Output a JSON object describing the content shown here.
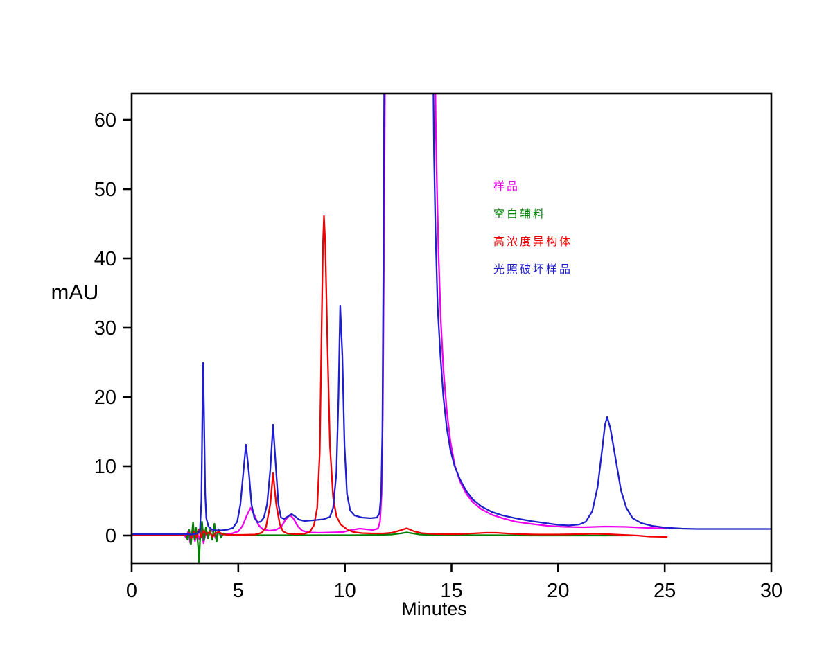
{
  "chart_data": {
    "type": "line",
    "title": "",
    "xlabel": "Minutes",
    "ylabel": "mAU",
    "xlim": [
      0,
      30
    ],
    "ylim": [
      -4,
      63.8
    ],
    "x_ticks": [
      0,
      5,
      10,
      15,
      20,
      25,
      30
    ],
    "y_ticks": [
      0,
      10,
      20,
      30,
      40,
      50,
      60
    ],
    "grid": false,
    "legend_position": "inside-upper-right",
    "axis_color": "#000000",
    "note_offscale_peak": "main peak 11.9-14.2 min clipped at plot top",
    "series": [
      {
        "name": "样品",
        "key": "sample",
        "color": "#EE00EE",
        "points": [
          [
            0,
            0.15
          ],
          [
            0.5,
            0.15
          ],
          [
            1,
            0.15
          ],
          [
            1.5,
            0.15
          ],
          [
            2,
            0.15
          ],
          [
            2.45,
            0.15
          ],
          [
            2.55,
            -0.3
          ],
          [
            2.65,
            0.6
          ],
          [
            2.75,
            -1.1
          ],
          [
            2.87,
            0.7
          ],
          [
            2.97,
            -0.8
          ],
          [
            3.07,
            0.5
          ],
          [
            3.17,
            -0.6
          ],
          [
            3.27,
            0.9
          ],
          [
            3.37,
            -1.1
          ],
          [
            3.48,
            0.5
          ],
          [
            3.58,
            -0.4
          ],
          [
            3.7,
            0.8
          ],
          [
            3.83,
            0.5
          ],
          [
            3.94,
            -0.4
          ],
          [
            4.05,
            0.5
          ],
          [
            4.2,
            0.1
          ],
          [
            4.4,
            0.2
          ],
          [
            4.7,
            0.3
          ],
          [
            5.0,
            0.6
          ],
          [
            5.2,
            1.4
          ],
          [
            5.4,
            2.9
          ],
          [
            5.58,
            4.0
          ],
          [
            5.75,
            3.0
          ],
          [
            5.95,
            1.5
          ],
          [
            6.15,
            0.9
          ],
          [
            6.45,
            0.7
          ],
          [
            6.75,
            0.8
          ],
          [
            7.0,
            1.2
          ],
          [
            7.2,
            2.2
          ],
          [
            7.42,
            3.0
          ],
          [
            7.6,
            2.4
          ],
          [
            7.8,
            1.3
          ],
          [
            8.0,
            0.7
          ],
          [
            8.3,
            0.45
          ],
          [
            8.8,
            0.4
          ],
          [
            9.4,
            0.45
          ],
          [
            9.9,
            0.5
          ],
          [
            10.3,
            0.8
          ],
          [
            10.7,
            1.0
          ],
          [
            11.0,
            0.9
          ],
          [
            11.3,
            0.8
          ],
          [
            11.55,
            1.0
          ],
          [
            11.65,
            2
          ],
          [
            11.72,
            6
          ],
          [
            11.78,
            18
          ],
          [
            11.84,
            45
          ],
          [
            11.9,
            75
          ],
          [
            14.2,
            75
          ],
          [
            14.26,
            60
          ],
          [
            14.32,
            50
          ],
          [
            14.4,
            40
          ],
          [
            14.5,
            31
          ],
          [
            14.62,
            24
          ],
          [
            14.78,
            18
          ],
          [
            14.95,
            13.5
          ],
          [
            15.15,
            10.2
          ],
          [
            15.4,
            7.8
          ],
          [
            15.7,
            6.0
          ],
          [
            16.0,
            4.8
          ],
          [
            16.4,
            3.8
          ],
          [
            16.9,
            3.0
          ],
          [
            17.4,
            2.5
          ],
          [
            18.0,
            2.0
          ],
          [
            18.7,
            1.7
          ],
          [
            19.5,
            1.4
          ],
          [
            20.3,
            1.25
          ],
          [
            21.2,
            1.2
          ],
          [
            22.2,
            1.3
          ],
          [
            23.2,
            1.25
          ],
          [
            24.2,
            1.1
          ],
          [
            25.1,
            1.0
          ]
        ]
      },
      {
        "name": "空白辅料",
        "key": "blank-excipient",
        "color": "#008000",
        "points": [
          [
            0,
            0.05
          ],
          [
            0.6,
            0.05
          ],
          [
            1.2,
            0.05
          ],
          [
            1.8,
            0.05
          ],
          [
            2.4,
            0.05
          ],
          [
            2.55,
            0.1
          ],
          [
            2.62,
            -0.6
          ],
          [
            2.7,
            0.8
          ],
          [
            2.78,
            -1.3
          ],
          [
            2.88,
            1.9
          ],
          [
            2.95,
            -0.6
          ],
          [
            3.02,
            1.1
          ],
          [
            3.08,
            -0.4
          ],
          [
            3.13,
            -2.0
          ],
          [
            3.16,
            -3.9
          ],
          [
            3.2,
            -1.0
          ],
          [
            3.24,
            0.5
          ],
          [
            3.3,
            2.0
          ],
          [
            3.38,
            -0.7
          ],
          [
            3.48,
            1.2
          ],
          [
            3.58,
            -0.4
          ],
          [
            3.68,
            0.8
          ],
          [
            3.78,
            -0.6
          ],
          [
            3.88,
            1.7
          ],
          [
            3.98,
            -0.9
          ],
          [
            4.08,
            0.9
          ],
          [
            4.18,
            -0.3
          ],
          [
            4.3,
            0.3
          ],
          [
            4.5,
            0.05
          ],
          [
            5.5,
            0.05
          ],
          [
            6.5,
            0.05
          ],
          [
            7.5,
            0.05
          ],
          [
            8.5,
            0.05
          ],
          [
            9.5,
            0.05
          ],
          [
            10.5,
            0.05
          ],
          [
            11.5,
            0.08
          ],
          [
            12.2,
            0.15
          ],
          [
            12.6,
            0.3
          ],
          [
            12.9,
            0.45
          ],
          [
            13.2,
            0.3
          ],
          [
            13.5,
            0.15
          ],
          [
            14.0,
            0.08
          ],
          [
            15,
            0.05
          ],
          [
            16,
            0.05
          ],
          [
            17,
            0.05
          ],
          [
            18,
            0.02
          ],
          [
            19,
            0.0
          ],
          [
            20,
            0.0
          ],
          [
            21,
            0.0
          ],
          [
            22,
            0.0
          ],
          [
            23.5,
            0.0
          ]
        ]
      },
      {
        "name": "高浓度异构体",
        "key": "high-conc-isomer",
        "color": "#EE0000",
        "points": [
          [
            0,
            0.1
          ],
          [
            0.6,
            0.1
          ],
          [
            1.2,
            0.1
          ],
          [
            1.8,
            0.1
          ],
          [
            2.4,
            0.1
          ],
          [
            2.6,
            0.1
          ],
          [
            2.7,
            0.4
          ],
          [
            2.8,
            -0.4
          ],
          [
            2.92,
            0.6
          ],
          [
            3.05,
            -0.3
          ],
          [
            3.15,
            0.9
          ],
          [
            3.25,
            -0.3
          ],
          [
            3.38,
            0.7
          ],
          [
            3.5,
            0.2
          ],
          [
            3.65,
            0.5
          ],
          [
            3.8,
            -0.2
          ],
          [
            3.95,
            0.4
          ],
          [
            4.1,
            0.5
          ],
          [
            4.3,
            0.15
          ],
          [
            4.6,
            0.1
          ],
          [
            5.2,
            0.1
          ],
          [
            5.8,
            0.15
          ],
          [
            6.1,
            0.4
          ],
          [
            6.3,
            1.2
          ],
          [
            6.5,
            4.5
          ],
          [
            6.63,
            9.0
          ],
          [
            6.78,
            4.5
          ],
          [
            6.95,
            1.6
          ],
          [
            7.1,
            0.6
          ],
          [
            7.3,
            0.3
          ],
          [
            7.7,
            0.2
          ],
          [
            8.1,
            0.25
          ],
          [
            8.35,
            0.5
          ],
          [
            8.55,
            1.5
          ],
          [
            8.7,
            4.0
          ],
          [
            8.82,
            12
          ],
          [
            8.9,
            28
          ],
          [
            8.97,
            42
          ],
          [
            9.02,
            46.1
          ],
          [
            9.08,
            42
          ],
          [
            9.18,
            28
          ],
          [
            9.3,
            13
          ],
          [
            9.45,
            5.5
          ],
          [
            9.6,
            2.8
          ],
          [
            9.8,
            1.6
          ],
          [
            10.1,
            0.9
          ],
          [
            10.4,
            0.5
          ],
          [
            10.8,
            0.35
          ],
          [
            11.3,
            0.3
          ],
          [
            11.8,
            0.3
          ],
          [
            12.2,
            0.4
          ],
          [
            12.55,
            0.7
          ],
          [
            12.9,
            1.05
          ],
          [
            13.25,
            0.6
          ],
          [
            13.6,
            0.35
          ],
          [
            14.0,
            0.25
          ],
          [
            14.6,
            0.2
          ],
          [
            15.3,
            0.2
          ],
          [
            16.0,
            0.3
          ],
          [
            16.6,
            0.4
          ],
          [
            17.1,
            0.4
          ],
          [
            17.6,
            0.3
          ],
          [
            18.2,
            0.2
          ],
          [
            19.0,
            0.15
          ],
          [
            20.0,
            0.15
          ],
          [
            21.0,
            0.2
          ],
          [
            21.7,
            0.25
          ],
          [
            22.3,
            0.2
          ],
          [
            23.0,
            0.1
          ],
          [
            23.7,
            0.0
          ],
          [
            24.3,
            -0.15
          ],
          [
            25.1,
            -0.2
          ]
        ]
      },
      {
        "name": "光照破坏样品",
        "key": "photodegraded-sample",
        "color": "#1E1ECC",
        "points": [
          [
            0,
            0.2
          ],
          [
            0.7,
            0.2
          ],
          [
            1.4,
            0.2
          ],
          [
            2.1,
            0.2
          ],
          [
            2.6,
            0.2
          ],
          [
            2.8,
            0.15
          ],
          [
            3.0,
            0.25
          ],
          [
            3.1,
            0.3
          ],
          [
            3.2,
            0.8
          ],
          [
            3.27,
            5
          ],
          [
            3.32,
            18
          ],
          [
            3.35,
            24.9
          ],
          [
            3.39,
            18
          ],
          [
            3.45,
            6
          ],
          [
            3.5,
            2.5
          ],
          [
            3.6,
            1.3
          ],
          [
            3.75,
            0.9
          ],
          [
            3.95,
            0.75
          ],
          [
            4.2,
            0.75
          ],
          [
            4.5,
            0.85
          ],
          [
            4.75,
            1.1
          ],
          [
            4.95,
            2.0
          ],
          [
            5.1,
            4.5
          ],
          [
            5.25,
            9.5
          ],
          [
            5.36,
            13.1
          ],
          [
            5.5,
            9.0
          ],
          [
            5.62,
            4.5
          ],
          [
            5.75,
            2.6
          ],
          [
            5.9,
            1.9
          ],
          [
            6.05,
            2.0
          ],
          [
            6.2,
            2.6
          ],
          [
            6.35,
            4.5
          ],
          [
            6.5,
            9.5
          ],
          [
            6.63,
            16.0
          ],
          [
            6.76,
            10
          ],
          [
            6.88,
            4.5
          ],
          [
            7.0,
            2.6
          ],
          [
            7.15,
            2.4
          ],
          [
            7.35,
            2.8
          ],
          [
            7.5,
            3.1
          ],
          [
            7.65,
            2.8
          ],
          [
            7.85,
            2.3
          ],
          [
            8.1,
            2.1
          ],
          [
            8.5,
            2.2
          ],
          [
            9.0,
            2.35
          ],
          [
            9.3,
            2.7
          ],
          [
            9.45,
            4.0
          ],
          [
            9.6,
            9.0
          ],
          [
            9.7,
            20
          ],
          [
            9.78,
            33.2
          ],
          [
            9.88,
            26
          ],
          [
            9.98,
            13
          ],
          [
            10.1,
            6.0
          ],
          [
            10.25,
            3.6
          ],
          [
            10.45,
            2.9
          ],
          [
            10.8,
            2.6
          ],
          [
            11.2,
            2.5
          ],
          [
            11.5,
            2.6
          ],
          [
            11.62,
            3.2
          ],
          [
            11.7,
            6.0
          ],
          [
            11.76,
            15
          ],
          [
            11.8,
            35
          ],
          [
            11.86,
            75
          ],
          [
            14.12,
            75
          ],
          [
            14.18,
            55
          ],
          [
            14.25,
            44
          ],
          [
            14.35,
            33
          ],
          [
            14.48,
            26
          ],
          [
            14.62,
            20
          ],
          [
            14.78,
            15.5
          ],
          [
            14.95,
            12.3
          ],
          [
            15.15,
            10.0
          ],
          [
            15.4,
            8.1
          ],
          [
            15.7,
            6.4
          ],
          [
            16.0,
            5.2
          ],
          [
            16.4,
            4.2
          ],
          [
            16.9,
            3.4
          ],
          [
            17.4,
            2.9
          ],
          [
            18.0,
            2.5
          ],
          [
            18.7,
            2.1
          ],
          [
            19.4,
            1.8
          ],
          [
            20.0,
            1.55
          ],
          [
            20.5,
            1.45
          ],
          [
            21.0,
            1.6
          ],
          [
            21.3,
            2.0
          ],
          [
            21.6,
            3.5
          ],
          [
            21.85,
            7.0
          ],
          [
            22.05,
            12
          ],
          [
            22.2,
            16
          ],
          [
            22.3,
            17.1
          ],
          [
            22.45,
            15.5
          ],
          [
            22.7,
            11
          ],
          [
            22.95,
            6.5
          ],
          [
            23.2,
            4.0
          ],
          [
            23.5,
            2.5
          ],
          [
            23.9,
            1.8
          ],
          [
            24.4,
            1.4
          ],
          [
            25.0,
            1.15
          ],
          [
            25.8,
            1.0
          ],
          [
            26.5,
            0.95
          ],
          [
            27.5,
            0.95
          ],
          [
            28.5,
            0.95
          ],
          [
            29.5,
            0.95
          ],
          [
            30,
            0.95
          ]
        ]
      }
    ]
  }
}
